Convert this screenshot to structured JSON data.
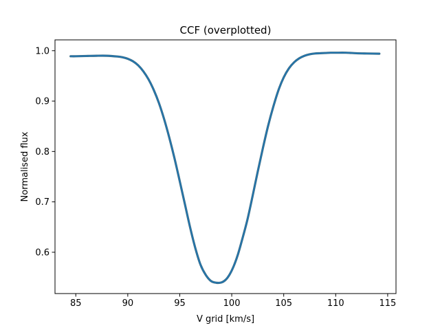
{
  "chart_data": {
    "type": "line",
    "title": "CCF (overplotted)",
    "xlabel": "V grid [km/s]",
    "ylabel": "Normalised flux",
    "xlim": [
      83.0,
      115.8
    ],
    "ylim": [
      0.518,
      1.0215
    ],
    "xticks": [
      85,
      90,
      95,
      100,
      105,
      110,
      115
    ],
    "xtick_labels": [
      "85",
      "90",
      "95",
      "100",
      "105",
      "110",
      "115"
    ],
    "yticks": [
      0.6,
      0.7,
      0.8,
      0.9,
      1.0
    ],
    "ytick_labels": [
      "0.6",
      "0.7",
      "0.8",
      "0.9",
      "1.0"
    ],
    "grid": false,
    "series": [
      {
        "color": "#1f77b4",
        "edge_color": "#3b6e8a",
        "x": [
          84.5,
          85,
          86,
          87,
          88,
          89,
          89.5,
          90,
          90.5,
          91,
          91.5,
          92,
          92.5,
          93,
          93.5,
          94,
          94.5,
          95,
          95.5,
          96,
          96.5,
          97,
          97.5,
          98,
          98.5,
          99,
          99.4,
          99.8,
          100.2,
          100.6,
          101,
          101.5,
          102,
          102.5,
          103,
          103.5,
          104,
          104.5,
          105,
          105.5,
          106,
          106.5,
          107,
          107.5,
          108,
          108.5,
          109,
          109.5,
          110,
          111,
          112,
          113,
          114.2
        ],
        "y": [
          0.989,
          0.989,
          0.9895,
          0.99,
          0.99,
          0.9885,
          0.987,
          0.984,
          0.979,
          0.971,
          0.959,
          0.943,
          0.922,
          0.896,
          0.864,
          0.827,
          0.786,
          0.741,
          0.695,
          0.649,
          0.608,
          0.575,
          0.555,
          0.543,
          0.5395,
          0.54,
          0.545,
          0.556,
          0.573,
          0.596,
          0.625,
          0.664,
          0.711,
          0.76,
          0.807,
          0.851,
          0.889,
          0.922,
          0.947,
          0.965,
          0.977,
          0.985,
          0.99,
          0.993,
          0.9945,
          0.995,
          0.9955,
          0.996,
          0.996,
          0.996,
          0.995,
          0.9945,
          0.994
        ]
      }
    ]
  }
}
